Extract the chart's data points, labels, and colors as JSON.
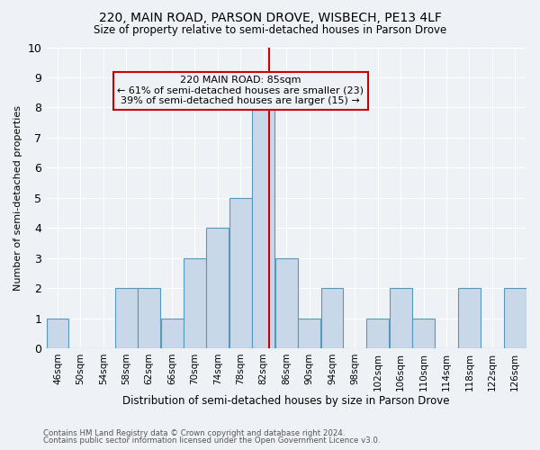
{
  "title1": "220, MAIN ROAD, PARSON DROVE, WISBECH, PE13 4LF",
  "title2": "Size of property relative to semi-detached houses in Parson Drove",
  "xlabel": "Distribution of semi-detached houses by size in Parson Drove",
  "ylabel": "Number of semi-detached properties",
  "footnote1": "Contains HM Land Registry data © Crown copyright and database right 2024.",
  "footnote2": "Contains public sector information licensed under the Open Government Licence v3.0.",
  "bin_labels": [
    "46sqm",
    "50sqm",
    "54sqm",
    "58sqm",
    "62sqm",
    "66sqm",
    "70sqm",
    "74sqm",
    "78sqm",
    "82sqm",
    "86sqm",
    "90sqm",
    "94sqm",
    "98sqm",
    "102sqm",
    "106sqm",
    "110sqm",
    "114sqm",
    "118sqm",
    "122sqm",
    "126sqm"
  ],
  "bin_edges": [
    46,
    50,
    54,
    58,
    62,
    66,
    70,
    74,
    78,
    82,
    86,
    90,
    94,
    98,
    102,
    106,
    110,
    114,
    118,
    122,
    126
  ],
  "counts": [
    1,
    0,
    0,
    2,
    2,
    1,
    3,
    4,
    5,
    8,
    3,
    1,
    2,
    0,
    1,
    2,
    1,
    0,
    2,
    0,
    2
  ],
  "bar_color": "#c8d8e8",
  "bar_edge_color": "#5599bb",
  "subject_value": 85,
  "subject_line_color": "#cc0000",
  "annotation_text": "220 MAIN ROAD: 85sqm\n← 61% of semi-detached houses are smaller (23)\n39% of semi-detached houses are larger (15) →",
  "annotation_box_color": "#cc0000",
  "ylim": [
    0,
    10
  ],
  "yticks": [
    0,
    1,
    2,
    3,
    4,
    5,
    6,
    7,
    8,
    9,
    10
  ],
  "background_color": "#eef2f7",
  "grid_color": "#ffffff"
}
